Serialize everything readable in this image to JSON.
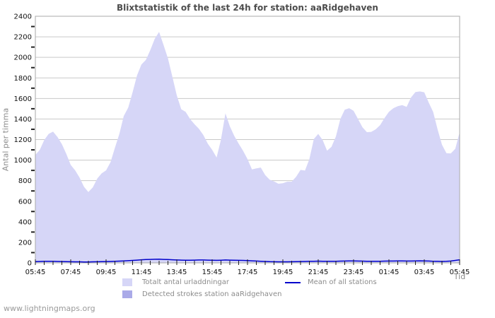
{
  "title": "Blixtstatistik of the last 24h for station: aaRidgehaven",
  "footer": {
    "website": "www.lightningmaps.org"
  },
  "colors": {
    "total_fill": "#d6d6f7",
    "detected_fill": "#aaaae8",
    "mean_line": "#0000cc",
    "grid": "#c9c9c9",
    "plot_border": "#a8a8a8",
    "tick": "#222222",
    "axis_label_text": "#111111",
    "title_text": "#4d4d4d",
    "muted_text": "#8c8c8c"
  },
  "legend": {
    "total": "Totalt antal urladdningar",
    "detected": "Detected strokes station aaRidgehaven",
    "mean": "Mean of all stations"
  },
  "chart_data": {
    "type": "area",
    "title": "Blixtstatistik of the last 24h for station: aaRidgehaven",
    "xlabel": "Tid",
    "ylabel": "Antal per timma",
    "ylim": [
      0,
      2400
    ],
    "y_tick_step": 200,
    "y_minor_tick_step": 100,
    "grid": true,
    "legend_position": "bottom",
    "x_tick_labels": [
      "05:45",
      "07:45",
      "09:45",
      "11:45",
      "13:45",
      "15:45",
      "17:45",
      "19:45",
      "21:45",
      "23:45",
      "01:45",
      "03:45",
      "05:45"
    ],
    "x_span_minutes": 1440,
    "sample_step_minutes": 15,
    "x_minor_tick_minutes": 30,
    "series": [
      {
        "name": "Totalt antal urladdningar",
        "kind": "area",
        "color": "#d6d6f7",
        "values": [
          1050,
          1100,
          1195,
          1255,
          1278,
          1225,
          1155,
          1060,
          953,
          900,
          830,
          740,
          690,
          735,
          820,
          872,
          900,
          980,
          1120,
          1255,
          1430,
          1510,
          1660,
          1825,
          1930,
          1975,
          2070,
          2180,
          2248,
          2120,
          1990,
          1810,
          1630,
          1495,
          1470,
          1400,
          1350,
          1305,
          1245,
          1160,
          1100,
          1025,
          1200,
          1455,
          1330,
          1235,
          1160,
          1090,
          1010,
          910,
          920,
          928,
          855,
          810,
          793,
          770,
          775,
          790,
          790,
          838,
          905,
          898,
          1010,
          1205,
          1255,
          1195,
          1092,
          1130,
          1230,
          1400,
          1490,
          1505,
          1480,
          1400,
          1320,
          1272,
          1275,
          1300,
          1340,
          1410,
          1470,
          1505,
          1525,
          1535,
          1518,
          1610,
          1662,
          1668,
          1660,
          1560,
          1470,
          1300,
          1150,
          1068,
          1065,
          1110,
          1270
        ]
      },
      {
        "name": "Detected strokes station aaRidgehaven",
        "kind": "area",
        "color": "#aaaae8",
        "values_constant": 0
      },
      {
        "name": "Mean of all stations",
        "kind": "line",
        "color": "#0000cc",
        "values": [
          12,
          14,
          15,
          16,
          15,
          14,
          13,
          12,
          11,
          10,
          10,
          9,
          9,
          10,
          11,
          12,
          13,
          14,
          15,
          17,
          19,
          21,
          24,
          27,
          30,
          32,
          34,
          35,
          36,
          34,
          32,
          30,
          28,
          27,
          26,
          26,
          27,
          28,
          28,
          27,
          26,
          25,
          26,
          28,
          27,
          26,
          25,
          24,
          22,
          20,
          18,
          16,
          14,
          12,
          11,
          10,
          10,
          10,
          11,
          12,
          13,
          14,
          15,
          16,
          17,
          16,
          15,
          15,
          16,
          17,
          18,
          19,
          19,
          18,
          17,
          16,
          15,
          15,
          16,
          17,
          18,
          18,
          19,
          19,
          18,
          18,
          19,
          20,
          19,
          18,
          16,
          15,
          14,
          15,
          18,
          24,
          30
        ]
      }
    ]
  }
}
